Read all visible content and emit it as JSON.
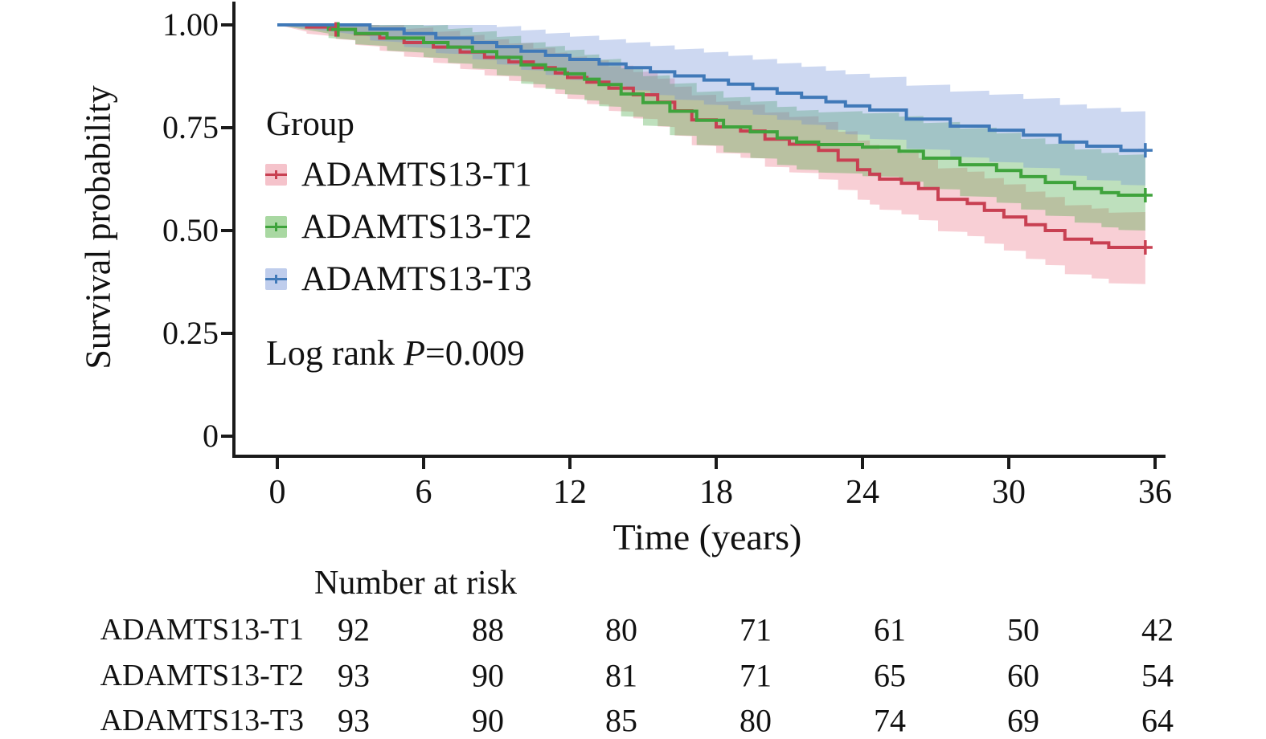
{
  "figure": {
    "y_axis": {
      "title": "Survival probability",
      "ticks": [
        "1.00",
        "0.75",
        "0.50",
        "0.25",
        "0"
      ]
    },
    "x_axis": {
      "title": "Time (years)",
      "ticks": [
        "0",
        "6",
        "12",
        "18",
        "24",
        "30",
        "36"
      ]
    },
    "legend": {
      "title": "Group",
      "items": [
        {
          "label": "ADAMTS13-T1",
          "line_color": "#c84052",
          "fill_color": "#f5c3cb"
        },
        {
          "label": "ADAMTS13-T2",
          "line_color": "#3fa33c",
          "fill_color": "#a9d8a2"
        },
        {
          "label": "ADAMTS13-T3",
          "line_color": "#4079b8",
          "fill_color": "#bfcdec"
        }
      ]
    },
    "annotation": {
      "prefix": "Log rank ",
      "p_symbol": "P",
      "value": "=0.009"
    }
  },
  "risk_table": {
    "title": "Number at risk",
    "rows": [
      {
        "label": "ADAMTS13-T1",
        "values": [
          "92",
          "88",
          "80",
          "71",
          "61",
          "50",
          "42"
        ]
      },
      {
        "label": "ADAMTS13-T2",
        "values": [
          "93",
          "90",
          "81",
          "71",
          "65",
          "60",
          "54"
        ]
      },
      {
        "label": "ADAMTS13-T3",
        "values": [
          "93",
          "90",
          "85",
          "80",
          "74",
          "69",
          "64"
        ]
      }
    ]
  },
  "chart_data": {
    "type": "line",
    "subtype": "kaplan-meier-step",
    "title": "",
    "xlabel": "Time (years)",
    "ylabel": "Survival probability",
    "xlim": [
      0,
      36
    ],
    "ylim": [
      0,
      1
    ],
    "x_ticks": [
      0,
      6,
      12,
      18,
      24,
      30,
      36
    ],
    "y_ticks": [
      0,
      0.25,
      0.5,
      0.75,
      1.0
    ],
    "grid": false,
    "legend_position": "inside-left",
    "log_rank_p": 0.009,
    "series": [
      {
        "name": "ADAMTS13-T1",
        "color": "#c84052",
        "band_color": "rgba(233,96,115,0.30)",
        "times": [
          0,
          1.2,
          2.4,
          3.2,
          4.2,
          5.2,
          6.4,
          7.5,
          8.5,
          9.5,
          10.5,
          11.4,
          11.9,
          12.7,
          13.6,
          14.6,
          15.6,
          16.3,
          17.0,
          18.0,
          19.0,
          20.0,
          21.0,
          22.2,
          23.0,
          23.8,
          24.3,
          24.7,
          25.6,
          26.3,
          27.1,
          28.3,
          29.0,
          29.8,
          30.7,
          31.5,
          32.3,
          33.4,
          34.1
        ],
        "surv": [
          1,
          0.995,
          0.989,
          0.978,
          0.968,
          0.957,
          0.946,
          0.934,
          0.921,
          0.91,
          0.896,
          0.883,
          0.872,
          0.861,
          0.846,
          0.83,
          0.812,
          0.791,
          0.769,
          0.752,
          0.742,
          0.722,
          0.71,
          0.695,
          0.671,
          0.648,
          0.637,
          0.625,
          0.615,
          0.602,
          0.576,
          0.566,
          0.549,
          0.533,
          0.514,
          0.5,
          0.479,
          0.47,
          0.459
        ],
        "end_time": 35.6,
        "censor_times": [
          2.4,
          35.6
        ],
        "ci_upper_at_end": 0.545,
        "ci_lower_at_end": 0.37
      },
      {
        "name": "ADAMTS13-T2",
        "color": "#3fa33c",
        "band_color": "rgba(70,167,66,0.35)",
        "times": [
          0,
          2.1,
          3.2,
          4.5,
          6.0,
          7.0,
          8.0,
          9.0,
          10.0,
          11.0,
          11.8,
          12.6,
          13.2,
          14.1,
          15.0,
          16.1,
          17.2,
          18.3,
          19.4,
          20.5,
          21.3,
          22.2,
          24.0,
          25.5,
          26.5,
          28.0,
          29.5,
          30.5,
          31.5,
          32.7,
          33.8,
          34.5
        ],
        "surv": [
          1,
          0.989,
          0.979,
          0.968,
          0.957,
          0.946,
          0.935,
          0.921,
          0.903,
          0.892,
          0.881,
          0.868,
          0.855,
          0.832,
          0.811,
          0.79,
          0.768,
          0.752,
          0.74,
          0.725,
          0.715,
          0.709,
          0.703,
          0.693,
          0.676,
          0.66,
          0.646,
          0.631,
          0.617,
          0.602,
          0.592,
          0.586
        ],
        "end_time": 35.6,
        "censor_times": [
          2.5,
          35.6
        ],
        "ci_upper_at_end": 0.685,
        "ci_lower_at_end": 0.5
      },
      {
        "name": "ADAMTS13-T3",
        "color": "#4079b8",
        "band_color": "rgba(112,143,214,0.35)",
        "times": [
          0,
          3.8,
          5.2,
          6.5,
          8.0,
          9.0,
          10.0,
          11.0,
          12.0,
          13.2,
          14.3,
          15.3,
          16.3,
          17.5,
          18.5,
          19.5,
          20.5,
          21.5,
          22.5,
          23.3,
          24.3,
          25.8,
          27.6,
          29.2,
          30.6,
          32.1,
          33.2,
          34.6
        ],
        "surv": [
          1,
          0.99,
          0.979,
          0.968,
          0.957,
          0.947,
          0.936,
          0.926,
          0.916,
          0.905,
          0.896,
          0.886,
          0.876,
          0.866,
          0.856,
          0.845,
          0.834,
          0.824,
          0.813,
          0.803,
          0.793,
          0.771,
          0.754,
          0.744,
          0.732,
          0.715,
          0.705,
          0.695
        ],
        "end_time": 35.6,
        "censor_times": [
          35.6
        ],
        "ci_upper_at_end": 0.79,
        "ci_lower_at_end": 0.61
      }
    ]
  }
}
